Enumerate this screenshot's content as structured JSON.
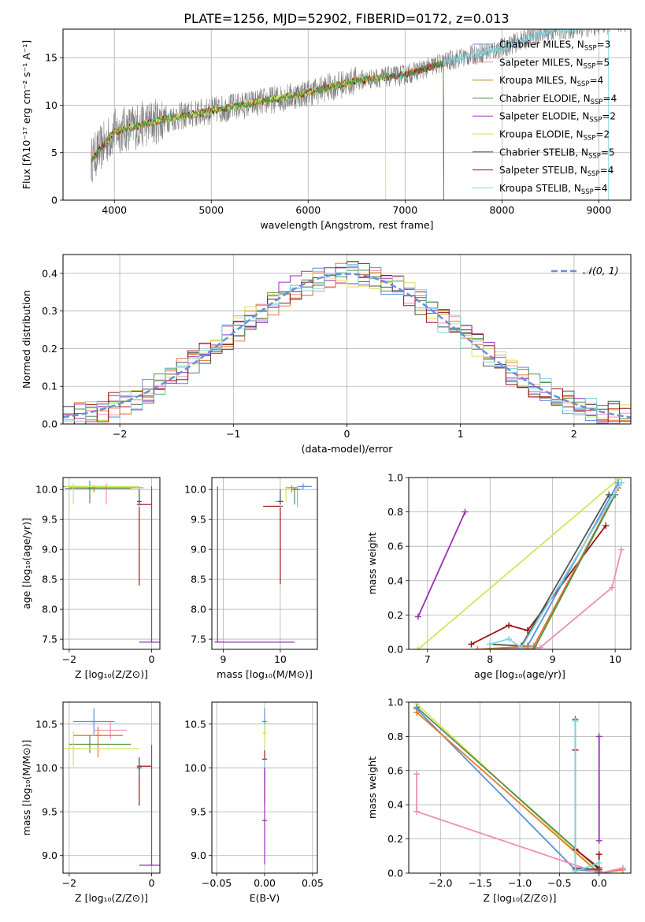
{
  "title": "PLATE=1256, MJD=52902, FIBERID=0172, z=0.013",
  "colors": {
    "chabrier_miles": "#5b8fd9",
    "salpeter_miles": "#ee8fb3",
    "kroupa_miles": "#b8860b",
    "chabrier_elodie": "#4e8f4e",
    "salpeter_elodie": "#9a2fb5",
    "kroupa_elodie": "#d6e35a",
    "chabrier_stelib": "#555555",
    "salpeter_stelib": "#a01010",
    "kroupa_stelib": "#7fd6df",
    "orange": "#e8782a",
    "data_spectrum": "#808080",
    "gaussian": "#6a8fd8"
  },
  "chart_data": [
    {
      "id": "spectrum",
      "type": "line",
      "xlabel": "wavelength [Angstrom, rest frame]",
      "ylabel": "Flux [fλ10⁻¹⁷ erg cm⁻² s⁻¹ A⁻¹]",
      "xlim": [
        3470,
        9330
      ],
      "ylim": [
        0,
        18
      ],
      "xticks": [
        "4000",
        "5000",
        "6000",
        "7000",
        "8000",
        "9000"
      ],
      "yticks": [
        "0",
        "5",
        "10",
        "15"
      ],
      "legend_position": "top-right",
      "legend": [
        {
          "label": "Chabrier MILES, N",
          "sub": "SSP",
          "tail": "=3",
          "color": "chabrier_miles"
        },
        {
          "label": "Salpeter MILES, N",
          "sub": "SSP",
          "tail": "=5",
          "color": "salpeter_miles"
        },
        {
          "label": "Kroupa MILES, N",
          "sub": "SSP",
          "tail": "=4",
          "color": "kroupa_miles"
        },
        {
          "label": "Chabrier ELODIE, N",
          "sub": "SSP",
          "tail": "=4",
          "color": "chabrier_elodie"
        },
        {
          "label": "Salpeter ELODIE, N",
          "sub": "SSP",
          "tail": "=2",
          "color": "salpeter_elodie"
        },
        {
          "label": "Kroupa ELODIE, N",
          "sub": "SSP",
          "tail": "=2",
          "color": "kroupa_elodie"
        },
        {
          "label": "Chabrier STELIB, N",
          "sub": "SSP",
          "tail": "=5",
          "color": "chabrier_stelib"
        },
        {
          "label": "Salpeter STELIB, N",
          "sub": "SSP",
          "tail": "=4",
          "color": "salpeter_stelib"
        },
        {
          "label": "Kroupa STELIB, N",
          "sub": "SSP",
          "tail": "=4",
          "color": "kroupa_stelib"
        }
      ],
      "continuum": [
        [
          3760,
          4.2
        ],
        [
          4000,
          7.2
        ],
        [
          4500,
          8.5
        ],
        [
          5000,
          9.4
        ],
        [
          5500,
          10.3
        ],
        [
          6000,
          11.3
        ],
        [
          6500,
          12.6
        ],
        [
          7000,
          13.2
        ],
        [
          7500,
          14.8
        ],
        [
          8000,
          16.0
        ],
        [
          8400,
          17.6
        ],
        [
          9000,
          18.4
        ],
        [
          9330,
          18.8
        ]
      ],
      "model_ranges": [
        {
          "color": "orange",
          "x": [
            3760,
            7400
          ]
        },
        {
          "color": "kroupa_stelib",
          "x": [
            3760,
            9100
          ]
        },
        {
          "color": "salpeter_stelib",
          "x": [
            3760,
            7400
          ]
        },
        {
          "color": "kroupa_elodie",
          "x": [
            3900,
            6800
          ]
        },
        {
          "color": "chabrier_elodie",
          "x": [
            3760,
            7400
          ]
        }
      ]
    },
    {
      "id": "residuals",
      "type": "bar",
      "xlabel": "(data-model)/error",
      "ylabel": "Normed distribution",
      "xlim": [
        -2.5,
        2.5
      ],
      "ylim": [
        0,
        0.45
      ],
      "xticks": [
        "−2",
        "−1",
        "0",
        "1",
        "2"
      ],
      "yticks": [
        "0.0",
        "0.1",
        "0.2",
        "0.3",
        "0.4"
      ],
      "bin_width": 0.1,
      "legend_label": "𝒩(0, 1)",
      "legend_position": "top-right",
      "grid": true
    },
    {
      "id": "age_vs_z",
      "type": "scatter",
      "xlabel": "Z [log₁₀(Z/Z⊙)]",
      "ylabel": "age  [log₁₀(age/yr)]",
      "xlim": [
        -2.15,
        0.2
      ],
      "ylim": [
        7.33,
        10.2
      ],
      "xticks": [
        "−2",
        "0"
      ],
      "yticks": [
        "7.5",
        "8.0",
        "8.5",
        "9.0",
        "9.5",
        "10.0"
      ],
      "points": [
        {
          "x": -1.5,
          "y": 10.05,
          "xerr": [
            0.8,
            0.5
          ],
          "yerr": [
            0.05,
            0.1
          ],
          "color": "chabrier_miles"
        },
        {
          "x": -1.1,
          "y": 10.05,
          "xerr": [
            0.4,
            0.0
          ],
          "yerr": [
            0.3,
            0.05
          ],
          "color": "salpeter_miles"
        },
        {
          "x": -1.4,
          "y": 10.03,
          "xerr": [
            0.6,
            1.2
          ],
          "yerr": [
            0.08,
            0.04
          ],
          "color": "orange"
        },
        {
          "x": -1.5,
          "y": 10.02,
          "xerr": [
            0.6,
            1.0
          ],
          "yerr": [
            0.25,
            0.03
          ],
          "color": "chabrier_elodie"
        },
        {
          "x": -1.9,
          "y": 10.05,
          "xerr": [
            0.2,
            1.6
          ],
          "yerr": [
            0.3,
            0.05
          ],
          "color": "kroupa_elodie"
        },
        {
          "x": -0.3,
          "y": 9.75,
          "xerr": [
            0.0,
            0.3
          ],
          "yerr": [
            1.35,
            0.05
          ],
          "color": "salpeter_stelib"
        },
        {
          "x": -0.3,
          "y": 9.8,
          "xerr": [
            0.02,
            0.02
          ],
          "yerr": [
            0.1,
            0.25
          ],
          "color": "kroupa_stelib"
        },
        {
          "x": -0.3,
          "y": 9.8,
          "xerr": [
            0.02,
            0.02
          ],
          "yerr": [
            0.05,
            0.2
          ],
          "color": "chabrier_stelib"
        },
        {
          "x": 0.0,
          "y": 7.45,
          "xerr": [
            0.3,
            0.3
          ],
          "yerr": [
            0.0,
            2.6
          ],
          "color": "salpeter_elodie"
        }
      ]
    },
    {
      "id": "age_vs_mass",
      "type": "scatter",
      "xlabel": "mass [log₁₀(M/M⊙)]",
      "ylabel": "",
      "xlim": [
        8.8,
        10.65
      ],
      "ylim": [
        7.33,
        10.2
      ],
      "xticks": [
        "9",
        "10"
      ],
      "yticks": [
        "7.5",
        "8.0",
        "8.5",
        "9.0",
        "9.5",
        "10.0"
      ],
      "points": [
        {
          "x": 10.4,
          "y": 10.05,
          "xerr": [
            0.1,
            0.15
          ],
          "yerr": [
            0.05,
            0.05
          ],
          "color": "chabrier_miles"
        },
        {
          "x": 10.3,
          "y": 10.0,
          "xerr": [
            0.1,
            0.1
          ],
          "yerr": [
            0.3,
            0.05
          ],
          "color": "salpeter_miles"
        },
        {
          "x": 10.2,
          "y": 10.03,
          "xerr": [
            0.1,
            0.1
          ],
          "yerr": [
            0.08,
            0.04
          ],
          "color": "orange"
        },
        {
          "x": 10.25,
          "y": 10.0,
          "xerr": [
            0.05,
            0.1
          ],
          "yerr": [
            0.25,
            0.03
          ],
          "color": "chabrier_elodie"
        },
        {
          "x": 10.1,
          "y": 10.0,
          "xerr": [
            0.1,
            0.1
          ],
          "yerr": [
            0.2,
            0.05
          ],
          "color": "kroupa_elodie"
        },
        {
          "x": 10.0,
          "y": 9.72,
          "xerr": [
            0.3,
            0.0
          ],
          "yerr": [
            1.3,
            0.0
          ],
          "color": "salpeter_stelib"
        },
        {
          "x": 10.0,
          "y": 9.8,
          "xerr": [
            0.1,
            0.05
          ],
          "yerr": [
            0.1,
            0.2
          ],
          "color": "kroupa_stelib"
        },
        {
          "x": 10.0,
          "y": 9.8,
          "xerr": [
            0.05,
            0.05
          ],
          "yerr": [
            0.05,
            0.2
          ],
          "color": "chabrier_stelib"
        },
        {
          "x": 8.9,
          "y": 7.45,
          "xerr": [
            0.05,
            1.35
          ],
          "yerr": [
            0.0,
            2.6
          ],
          "color": "salpeter_elodie"
        }
      ]
    },
    {
      "id": "weight_vs_age",
      "type": "line",
      "xlabel": "age  [log₁₀(age/yr)]",
      "ylabel": "mass weight",
      "xlim": [
        6.7,
        10.25
      ],
      "ylim": [
        0,
        1.0
      ],
      "xticks": [
        "7",
        "8",
        "9",
        "10"
      ],
      "yticks": [
        "0.0",
        "0.2",
        "0.4",
        "0.6",
        "0.8",
        "1.0"
      ],
      "grid": true,
      "series": [
        {
          "color": "salpeter_elodie",
          "x": [
            6.85,
            7.6
          ],
          "y": [
            0.19,
            0.8
          ]
        },
        {
          "color": "kroupa_elodie",
          "x": [
            6.85,
            10.05
          ],
          "y": [
            0.0,
            0.99
          ]
        },
        {
          "color": "salpeter_miles",
          "x": [
            7.8,
            8.8,
            9.95,
            10.1
          ],
          "y": [
            0.0,
            0.01,
            0.36,
            0.58
          ]
        },
        {
          "color": "salpeter_stelib",
          "x": [
            7.7,
            8.3,
            8.6,
            9.85
          ],
          "y": [
            0.03,
            0.14,
            0.11,
            0.72
          ]
        },
        {
          "color": "chabrier_miles",
          "x": [
            8.0,
            8.6,
            10.05
          ],
          "y": [
            0.0,
            0.02,
            0.97
          ]
        },
        {
          "color": "orange",
          "x": [
            7.8,
            8.7,
            10.05
          ],
          "y": [
            0.0,
            0.02,
            0.94
          ]
        },
        {
          "color": "chabrier_elodie",
          "x": [
            8.0,
            8.7,
            10.0
          ],
          "y": [
            0.0,
            0.0,
            0.9
          ]
        },
        {
          "color": "chabrier_stelib",
          "x": [
            8.0,
            8.5,
            9.9
          ],
          "y": [
            0.03,
            0.02,
            0.9
          ]
        },
        {
          "color": "kroupa_stelib",
          "x": [
            8.0,
            8.3,
            8.5,
            10.1
          ],
          "y": [
            0.03,
            0.06,
            0.01,
            0.97
          ]
        }
      ]
    },
    {
      "id": "mass_vs_z",
      "type": "scatter",
      "xlabel": "Z [log₁₀(Z/Z⊙)]",
      "ylabel": "mass [log₁₀(M/M⊙)]",
      "xlim": [
        -2.15,
        0.2
      ],
      "ylim": [
        8.8,
        10.75
      ],
      "xticks": [
        "−2",
        "0"
      ],
      "yticks": [
        "9.0",
        "9.5",
        "10.0",
        "10.5"
      ],
      "points": [
        {
          "x": -1.4,
          "y": 10.53,
          "xerr": [
            0.5,
            0.5
          ],
          "yerr": [
            0.15,
            0.15
          ],
          "color": "chabrier_miles"
        },
        {
          "x": -1.0,
          "y": 10.43,
          "xerr": [
            0.4,
            0.4
          ],
          "yerr": [
            0.1,
            0.1
          ],
          "color": "salpeter_miles"
        },
        {
          "x": -1.3,
          "y": 10.37,
          "xerr": [
            0.6,
            0.6
          ],
          "yerr": [
            0.25,
            0.1
          ],
          "color": "orange"
        },
        {
          "x": -1.5,
          "y": 10.27,
          "xerr": [
            0.5,
            1.0
          ],
          "yerr": [
            0.1,
            0.1
          ],
          "color": "chabrier_elodie"
        },
        {
          "x": -1.9,
          "y": 10.22,
          "xerr": [
            0.3,
            1.6
          ],
          "yerr": [
            0.2,
            0.2
          ],
          "color": "kroupa_elodie"
        },
        {
          "x": -0.3,
          "y": 10.02,
          "xerr": [
            0.0,
            0.3
          ],
          "yerr": [
            0.45,
            0.1
          ],
          "color": "salpeter_stelib"
        },
        {
          "x": -0.3,
          "y": 10.0,
          "xerr": [
            0.02,
            0.02
          ],
          "yerr": [
            0.1,
            0.1
          ],
          "color": "kroupa_stelib"
        },
        {
          "x": -0.3,
          "y": 10.0,
          "xerr": [
            0.05,
            0.05
          ],
          "yerr": [
            0.1,
            0.1
          ],
          "color": "chabrier_stelib"
        },
        {
          "x": 0.0,
          "y": 8.89,
          "xerr": [
            0.3,
            0.3
          ],
          "yerr": [
            0.0,
            1.37
          ],
          "color": "salpeter_elodie"
        }
      ]
    },
    {
      "id": "mass_vs_ebv",
      "type": "scatter",
      "xlabel": "E(B-V)",
      "ylabel": "",
      "xlim": [
        -0.055,
        0.055
      ],
      "ylim": [
        8.8,
        10.75
      ],
      "xticks": [
        "−0.05",
        "0.00",
        "0.05"
      ],
      "yticks": [
        "9.0",
        "9.5",
        "10.0",
        "10.5"
      ],
      "points": [
        {
          "x": 0.0,
          "y": 10.53,
          "yerr": [
            0.15,
            0.15
          ],
          "color": "chabrier_miles"
        },
        {
          "x": 0.0,
          "y": 10.4,
          "yerr": [
            0.15,
            0.1
          ],
          "color": "kroupa_elodie"
        },
        {
          "x": 0.0,
          "y": 10.1,
          "yerr": [
            0.5,
            0.1
          ],
          "color": "salpeter_stelib"
        },
        {
          "x": 0.0,
          "y": 10.0,
          "yerr": [
            0.15,
            0.1
          ],
          "color": "kroupa_stelib"
        },
        {
          "x": 0.0,
          "y": 9.4,
          "yerr": [
            0.5,
            0.6
          ],
          "color": "salpeter_elodie"
        }
      ]
    },
    {
      "id": "weight_vs_z",
      "type": "line",
      "xlabel": "Z [log₁₀(Z/Z⊙)]",
      "ylabel": "mass weight",
      "xlim": [
        -2.4,
        0.4
      ],
      "ylim": [
        0,
        1.0
      ],
      "xticks": [
        "−2.0",
        "−1.5",
        "−1.0",
        "−0.5",
        "0.0"
      ],
      "yticks": [
        "0.0",
        "0.2",
        "0.4",
        "0.6",
        "0.8",
        "1.0"
      ],
      "grid": true,
      "series": [
        {
          "color": "kroupa_elodie",
          "x": [
            -2.3,
            0.0
          ],
          "y": [
            0.99,
            0.0
          ]
        },
        {
          "color": "chabrier_elodie",
          "x": [
            -2.3,
            0.0
          ],
          "y": [
            0.97,
            0.02
          ]
        },
        {
          "color": "chabrier_miles",
          "x": [
            -2.3,
            -0.3,
            0.0
          ],
          "y": [
            0.96,
            0.02,
            0.01
          ]
        },
        {
          "color": "orange",
          "x": [
            -2.3,
            0.0,
            0.3
          ],
          "y": [
            0.94,
            0.0,
            0.02
          ]
        },
        {
          "color": "salpeter_miles",
          "x": [
            -2.3,
            -2.3,
            0.0,
            0.3
          ],
          "y": [
            0.58,
            0.36,
            0.0,
            0.03
          ]
        },
        {
          "color": "salpeter_elodie",
          "x": [
            0.0,
            0.0
          ],
          "y": [
            0.19,
            0.8
          ]
        },
        {
          "color": "salpeter_stelib",
          "x": [
            -0.3,
            -0.3,
            0.0,
            0.0
          ],
          "y": [
            0.72,
            0.14,
            0.03,
            0.11
          ]
        },
        {
          "color": "chabrier_stelib",
          "x": [
            -0.3,
            -0.3,
            0.0
          ],
          "y": [
            0.9,
            0.03,
            0.02
          ]
        },
        {
          "color": "kroupa_stelib",
          "x": [
            -0.3,
            -0.3,
            0.0
          ],
          "y": [
            0.89,
            0.01,
            0.06
          ]
        }
      ]
    }
  ]
}
